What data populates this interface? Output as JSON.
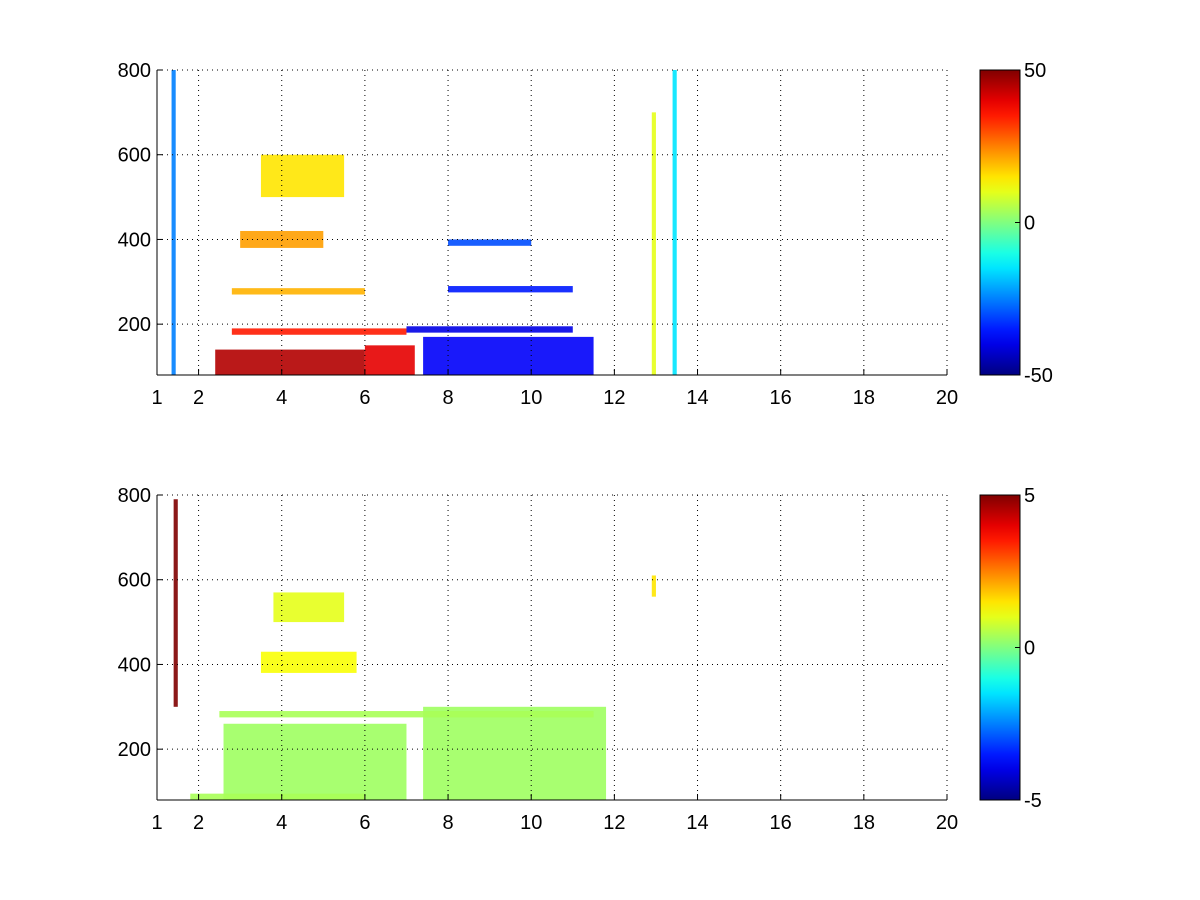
{
  "chart_data": [
    {
      "type": "heatmap",
      "title": "",
      "xlabel": "",
      "ylabel": "",
      "x_ticks": [
        "1",
        "2",
        "4",
        "6",
        "8",
        "10",
        "12",
        "14",
        "16",
        "18",
        "20"
      ],
      "x_tick_values": [
        1,
        2,
        4,
        6,
        8,
        10,
        12,
        14,
        16,
        18,
        20
      ],
      "xlim": [
        1,
        20
      ],
      "y_ticks": [
        "200",
        "400",
        "600",
        "800"
      ],
      "y_tick_values": [
        200,
        400,
        600,
        800
      ],
      "ylim": [
        80,
        800
      ],
      "grid": "dotted",
      "colormap": "jet",
      "colorbar": {
        "min": -50,
        "max": 50,
        "ticks": [
          "50",
          "0",
          "-50"
        ],
        "tick_values": [
          50,
          0,
          -50
        ]
      },
      "background": "#ffffff",
      "features": [
        {
          "description": "strong positive band",
          "x_range": [
            2.4,
            6.0
          ],
          "y_range": [
            80,
            140
          ],
          "value": 45
        },
        {
          "description": "positive band",
          "x_range": [
            6.0,
            7.2
          ],
          "y_range": [
            80,
            150
          ],
          "value": 40
        },
        {
          "description": "positive horizontal band",
          "x_range": [
            2.8,
            7.0
          ],
          "y_range": [
            175,
            190
          ],
          "value": 35
        },
        {
          "description": "negative region",
          "x_range": [
            7.4,
            11.5
          ],
          "y_range": [
            80,
            170
          ],
          "value": -38
        },
        {
          "description": "negative horizontal band",
          "x_range": [
            7.0,
            11.0
          ],
          "y_range": [
            180,
            195
          ],
          "value": -40
        },
        {
          "description": "negative horizontal band",
          "x_range": [
            8.0,
            11.0
          ],
          "y_range": [
            275,
            290
          ],
          "value": -35
        },
        {
          "description": "positive horizontal band",
          "x_range": [
            2.8,
            6.0
          ],
          "y_range": [
            270,
            285
          ],
          "value": 20
        },
        {
          "description": "positive curved band",
          "x_range": [
            3.0,
            5.0
          ],
          "y_range": [
            380,
            420
          ],
          "value": 22
        },
        {
          "description": "negative horizontal band",
          "x_range": [
            8.0,
            10.0
          ],
          "y_range": [
            385,
            400
          ],
          "value": -30
        },
        {
          "description": "positive scattered arc",
          "x_range": [
            3.5,
            5.5
          ],
          "y_range": [
            500,
            600
          ],
          "value": 15
        },
        {
          "description": "negative vertical line",
          "x_range": [
            1.35,
            1.45
          ],
          "y_range": [
            80,
            800
          ],
          "value": -25
        },
        {
          "description": "positive vertical line",
          "x_range": [
            12.9,
            13.0
          ],
          "y_range": [
            80,
            700
          ],
          "value": 10
        },
        {
          "description": "negative vertical line",
          "x_range": [
            13.4,
            13.5
          ],
          "y_range": [
            80,
            800
          ],
          "value": -15
        }
      ]
    },
    {
      "type": "heatmap",
      "title": "",
      "xlabel": "",
      "ylabel": "",
      "x_ticks": [
        "1",
        "2",
        "4",
        "6",
        "8",
        "10",
        "12",
        "14",
        "16",
        "18",
        "20"
      ],
      "x_tick_values": [
        1,
        2,
        4,
        6,
        8,
        10,
        12,
        14,
        16,
        18,
        20
      ],
      "xlim": [
        1,
        20
      ],
      "y_ticks": [
        "200",
        "400",
        "600",
        "800"
      ],
      "y_tick_values": [
        200,
        400,
        600,
        800
      ],
      "ylim": [
        80,
        800
      ],
      "grid": "dotted",
      "colormap": "jet",
      "colorbar": {
        "min": -5,
        "max": 5,
        "ticks": [
          "5",
          "0",
          "-5"
        ],
        "tick_values": [
          5,
          0,
          -5
        ]
      },
      "background": "#ffffff",
      "features": [
        {
          "description": "near-zero dense region",
          "x_range": [
            2.6,
            7.0
          ],
          "y_range": [
            80,
            260
          ],
          "value": 0.3
        },
        {
          "description": "near-zero dense region",
          "x_range": [
            7.4,
            11.8
          ],
          "y_range": [
            80,
            300
          ],
          "value": 0.3
        },
        {
          "description": "near-zero horizontal band",
          "x_range": [
            1.8,
            6.0
          ],
          "y_range": [
            80,
            95
          ],
          "value": 0.4
        },
        {
          "description": "near-zero horizontal band",
          "x_range": [
            2.5,
            11.5
          ],
          "y_range": [
            275,
            290
          ],
          "value": 0.4
        },
        {
          "description": "positive curved band",
          "x_range": [
            3.5,
            5.8
          ],
          "y_range": [
            380,
            430
          ],
          "value": 1.2
        },
        {
          "description": "positive scattered arc",
          "x_range": [
            3.8,
            5.5
          ],
          "y_range": [
            500,
            570
          ],
          "value": 1.0
        },
        {
          "description": "extreme vertical line",
          "x_range": [
            1.4,
            1.5
          ],
          "y_range": [
            300,
            790
          ],
          "value": 5
        },
        {
          "description": "small positive patch",
          "x_range": [
            12.9,
            13.0
          ],
          "y_range": [
            560,
            610
          ],
          "value": 1.5
        }
      ]
    }
  ]
}
